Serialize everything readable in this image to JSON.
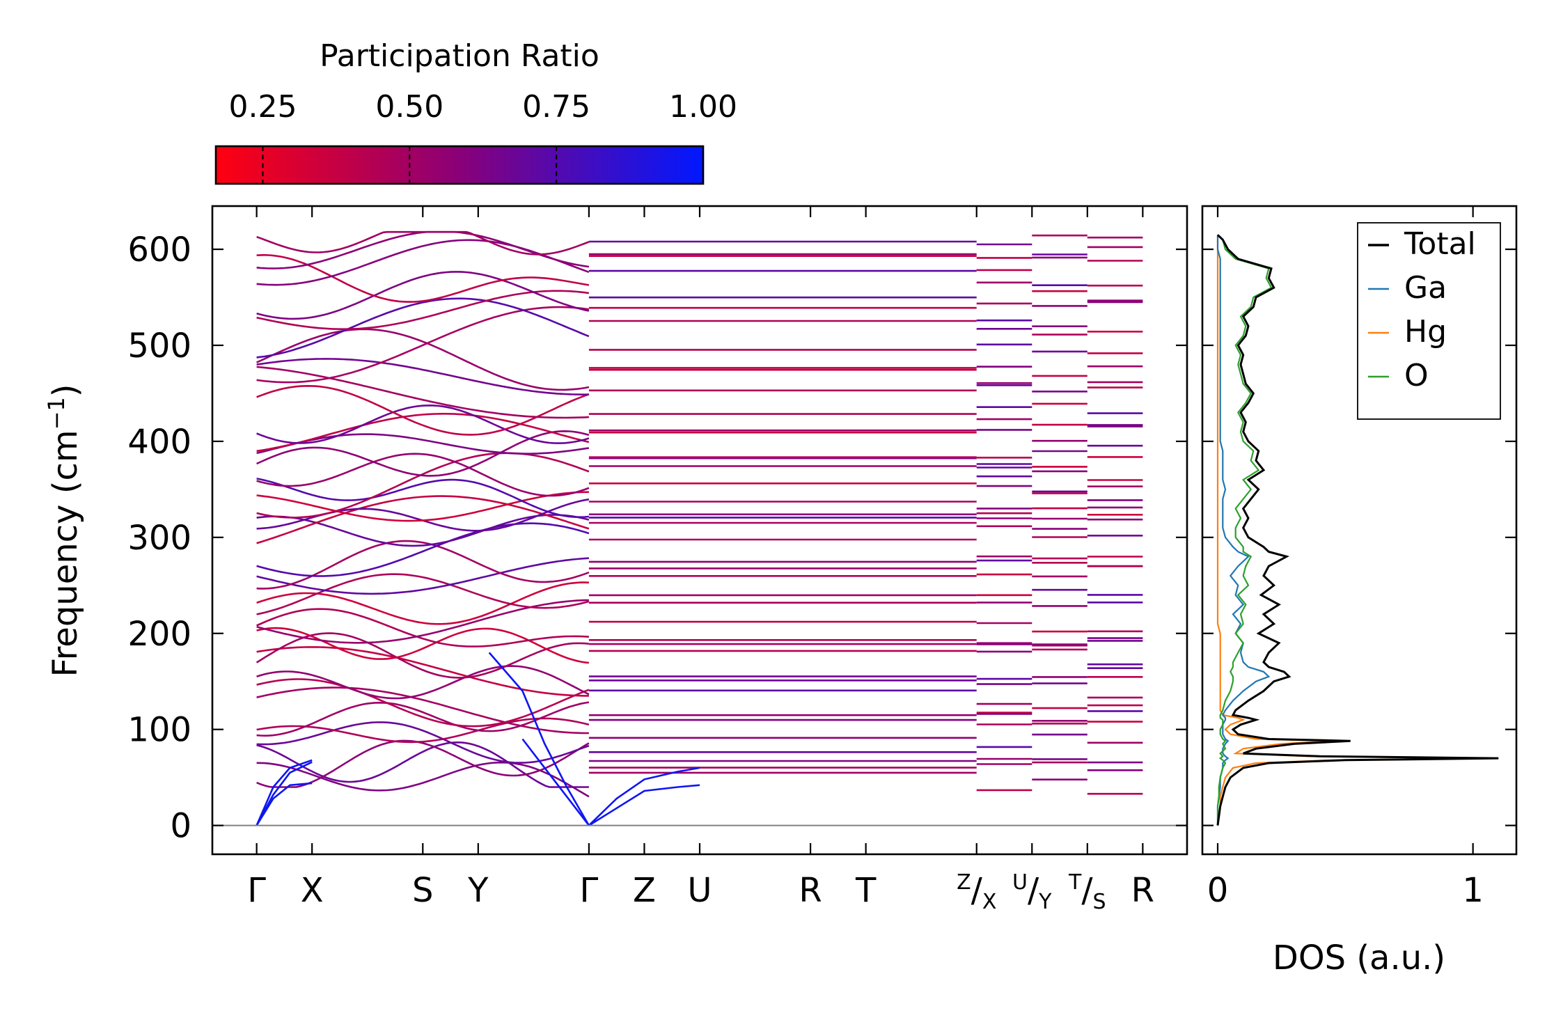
{
  "chart_data": {
    "type": "line",
    "colorbar": {
      "label": "Participation Ratio",
      "range": [
        0.17,
        1.0
      ],
      "ticks": [
        0.25,
        0.5,
        0.75,
        1.0
      ],
      "tick_labels": [
        "0.25",
        "0.50",
        "0.75",
        "1.00"
      ],
      "color_low": "#ff0010",
      "color_mid": "#8a0078",
      "color_high": "#0018ff"
    },
    "band_structure": {
      "ylabel": "Frequency (cm",
      "ylabel_sup": "−1",
      "ylabel_close": ")",
      "ylim": [
        -30,
        645
      ],
      "yticks": [
        0,
        100,
        200,
        300,
        400,
        500,
        600
      ],
      "ytick_labels": [
        "0",
        "100",
        "200",
        "300",
        "400",
        "500",
        "600"
      ],
      "xlim": [
        -0.8,
        16.8
      ],
      "kpoint_labels": [
        {
          "x": 0,
          "label": "Γ"
        },
        {
          "x": 1,
          "label": "X"
        },
        {
          "x": 3,
          "label": "S"
        },
        {
          "x": 4,
          "label": "Y"
        },
        {
          "x": 6,
          "label": "Γ"
        },
        {
          "x": 7,
          "label": "Z"
        },
        {
          "x": 8,
          "label": "U"
        },
        {
          "x": 10,
          "label": "R"
        },
        {
          "x": 11,
          "label": "T"
        },
        {
          "x": 13,
          "label": "Z/X"
        },
        {
          "x": 14,
          "label": "U/Y"
        },
        {
          "x": 15,
          "label": "T/S"
        },
        {
          "x": 16,
          "label": "R"
        }
      ],
      "segment_breaks": [
        [
          0,
          6
        ],
        [
          6,
          13
        ],
        [
          13,
          14
        ],
        [
          14,
          15
        ],
        [
          15,
          16
        ]
      ],
      "zero_line_color": "#808080",
      "acoustic_branches": [
        {
          "x": [
            0,
            0.3,
            0.6,
            1.0
          ],
          "y": [
            0,
            32,
            55,
            66
          ]
        },
        {
          "x": [
            0,
            0.3,
            0.6,
            1.0
          ],
          "y": [
            0,
            28,
            42,
            44
          ]
        },
        {
          "x": [
            0,
            0.3,
            0.6,
            1.0
          ],
          "y": [
            0,
            40,
            60,
            68
          ]
        },
        {
          "x": [
            6,
            6.5,
            7.0,
            7.6,
            8.0
          ],
          "y": [
            0,
            28,
            48,
            56,
            60
          ]
        },
        {
          "x": [
            6,
            6.5,
            7.0,
            7.6,
            8.0
          ],
          "y": [
            0,
            18,
            36,
            40,
            42
          ]
        },
        {
          "x": [
            6,
            5.6,
            5.2,
            4.8,
            4.2
          ],
          "y": [
            0,
            40,
            85,
            140,
            180
          ]
        },
        {
          "x": [
            6,
            5.6,
            5.2,
            4.8
          ],
          "y": [
            0,
            30,
            60,
            90
          ]
        }
      ],
      "optical_band_levels": [
        44,
        62,
        70,
        88,
        97,
        112,
        120,
        130,
        145,
        160,
        172,
        188,
        198,
        212,
        228,
        242,
        260,
        272,
        285,
        305,
        312,
        322,
        332,
        345,
        356,
        368,
        380,
        395,
        408,
        418,
        432,
        450,
        468,
        485,
        500,
        518,
        535,
        552,
        568,
        585,
        600,
        610
      ]
    },
    "dos": {
      "xlabel": "DOS (a.u.)",
      "xlim": [
        -0.06,
        1.17
      ],
      "xticks": [
        0,
        1
      ],
      "xtick_labels": [
        "0",
        "1"
      ],
      "legend": [
        {
          "name": "Total",
          "color": "#000000"
        },
        {
          "name": "Ga",
          "color": "#1f77b4"
        },
        {
          "name": "Hg",
          "color": "#ff7f0e"
        },
        {
          "name": "O",
          "color": "#2ca02c"
        }
      ],
      "freq": [
        0,
        20,
        30,
        40,
        50,
        60,
        65,
        68,
        70,
        72,
        75,
        80,
        85,
        88,
        90,
        95,
        100,
        105,
        110,
        112,
        115,
        120,
        130,
        140,
        150,
        155,
        160,
        165,
        170,
        180,
        190,
        200,
        210,
        220,
        230,
        240,
        250,
        260,
        270,
        280,
        285,
        290,
        300,
        310,
        320,
        330,
        340,
        350,
        360,
        370,
        380,
        390,
        400,
        410,
        420,
        430,
        440,
        450,
        460,
        470,
        480,
        490,
        500,
        510,
        520,
        530,
        540,
        550,
        560,
        570,
        580,
        590,
        600,
        610,
        615
      ],
      "total": [
        0.0,
        0.01,
        0.02,
        0.03,
        0.05,
        0.1,
        0.2,
        0.5,
        1.1,
        0.4,
        0.1,
        0.15,
        0.3,
        0.52,
        0.2,
        0.08,
        0.06,
        0.09,
        0.15,
        0.12,
        0.06,
        0.07,
        0.12,
        0.18,
        0.22,
        0.28,
        0.26,
        0.2,
        0.18,
        0.2,
        0.24,
        0.16,
        0.22,
        0.18,
        0.24,
        0.17,
        0.22,
        0.18,
        0.2,
        0.27,
        0.2,
        0.18,
        0.12,
        0.1,
        0.12,
        0.1,
        0.13,
        0.16,
        0.12,
        0.18,
        0.15,
        0.16,
        0.12,
        0.1,
        0.11,
        0.09,
        0.12,
        0.14,
        0.11,
        0.1,
        0.09,
        0.1,
        0.08,
        0.11,
        0.12,
        0.1,
        0.14,
        0.15,
        0.22,
        0.2,
        0.21,
        0.08,
        0.04,
        0.02,
        0.0
      ],
      "Ga": [
        0.0,
        0.0,
        0.005,
        0.01,
        0.01,
        0.02,
        0.02,
        0.03,
        0.04,
        0.03,
        0.02,
        0.02,
        0.03,
        0.04,
        0.03,
        0.02,
        0.02,
        0.02,
        0.03,
        0.03,
        0.02,
        0.03,
        0.06,
        0.1,
        0.15,
        0.2,
        0.18,
        0.12,
        0.1,
        0.09,
        0.1,
        0.07,
        0.09,
        0.06,
        0.1,
        0.07,
        0.08,
        0.05,
        0.08,
        0.12,
        0.08,
        0.06,
        0.03,
        0.02,
        0.02,
        0.02,
        0.02,
        0.03,
        0.02,
        0.02,
        0.02,
        0.02,
        0.01,
        0.01,
        0.01,
        0.01,
        0.01,
        0.01,
        0.01,
        0.01,
        0.01,
        0.01,
        0.01,
        0.01,
        0.01,
        0.01,
        0.01,
        0.01,
        0.01,
        0.01,
        0.01,
        0.01,
        0.0,
        0.0,
        0.0
      ],
      "Hg": [
        0.0,
        0.01,
        0.01,
        0.02,
        0.03,
        0.06,
        0.15,
        0.45,
        1.05,
        0.35,
        0.07,
        0.1,
        0.25,
        0.45,
        0.15,
        0.05,
        0.03,
        0.05,
        0.1,
        0.08,
        0.02,
        0.01,
        0.01,
        0.01,
        0.01,
        0.01,
        0.01,
        0.01,
        0.01,
        0.01,
        0.01,
        0.01,
        0.0,
        0.0,
        0.0,
        0.0,
        0.0,
        0.0,
        0.0,
        0.0,
        0.0,
        0.0,
        0.0,
        0.0,
        0.0,
        0.0,
        0.0,
        0.0,
        0.0,
        0.0,
        0.0,
        0.0,
        0.0,
        0.0,
        0.0,
        0.0,
        0.0,
        0.0,
        0.0,
        0.0,
        0.0,
        0.0,
        0.0,
        0.0,
        0.0,
        0.0,
        0.0,
        0.0,
        0.0,
        0.0,
        0.0,
        0.0,
        0.0,
        0.0,
        0.0
      ],
      "O": [
        0.0,
        0.0,
        0.005,
        0.005,
        0.01,
        0.02,
        0.03,
        0.02,
        0.01,
        0.02,
        0.01,
        0.03,
        0.02,
        0.03,
        0.02,
        0.01,
        0.01,
        0.02,
        0.02,
        0.01,
        0.01,
        0.02,
        0.03,
        0.05,
        0.06,
        0.06,
        0.05,
        0.06,
        0.06,
        0.08,
        0.1,
        0.07,
        0.1,
        0.09,
        0.11,
        0.08,
        0.12,
        0.1,
        0.11,
        0.13,
        0.1,
        0.1,
        0.07,
        0.07,
        0.09,
        0.07,
        0.1,
        0.13,
        0.1,
        0.16,
        0.13,
        0.14,
        0.1,
        0.09,
        0.1,
        0.08,
        0.11,
        0.13,
        0.1,
        0.09,
        0.08,
        0.09,
        0.07,
        0.1,
        0.11,
        0.09,
        0.13,
        0.14,
        0.21,
        0.19,
        0.2,
        0.07,
        0.03,
        0.02,
        0.0
      ]
    }
  }
}
